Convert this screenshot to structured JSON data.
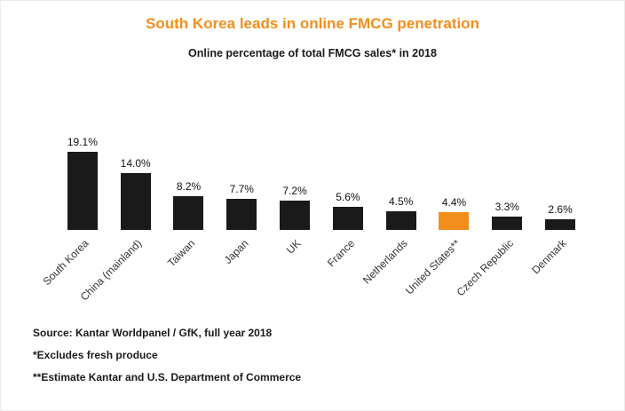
{
  "chart_data": {
    "type": "bar",
    "title": "South Korea leads in online FMCG penetration",
    "subtitle": "Online percentage of total FMCG sales* in 2018",
    "categories": [
      "South Korea",
      "China (mainland)",
      "Taiwan",
      "Japan",
      "UK",
      "France",
      "Netherlands",
      "United States**",
      "Czech Republic",
      "Denmark"
    ],
    "values": [
      19.1,
      14.0,
      8.2,
      7.7,
      7.2,
      5.6,
      4.5,
      4.4,
      3.3,
      2.6
    ],
    "value_suffix": "%",
    "highlight_index": 7,
    "bar_color": "#1a1a1a",
    "highlight_color": "#f28e1c",
    "title_color": "#f28e1c",
    "ylim": [
      0,
      20
    ],
    "grid": false,
    "legend": false,
    "xlabel": "",
    "ylabel": ""
  },
  "footnotes": {
    "source": "Source: Kantar Worldpanel / GfK, full year 2018",
    "note1": "*Excludes fresh produce",
    "note2": "**Estimate Kantar and U.S. Department of Commerce"
  }
}
